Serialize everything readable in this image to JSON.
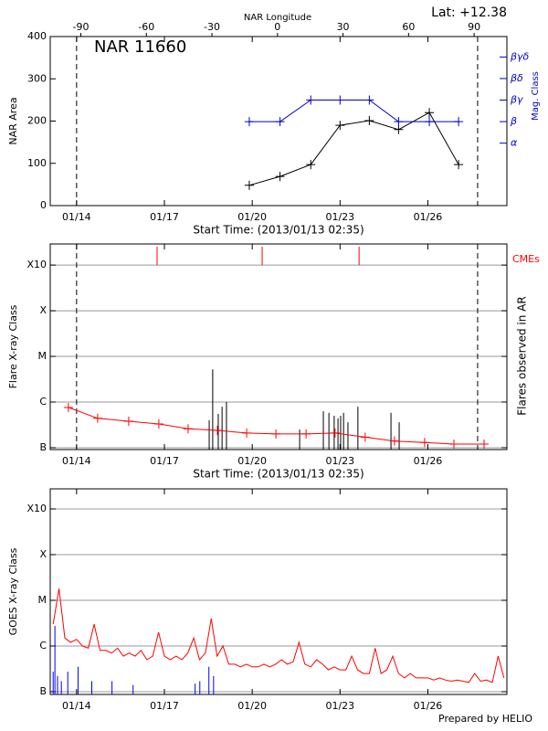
{
  "chart_data": [
    {
      "type": "line",
      "annotation": "NAR 11660",
      "corner_text": "Lat: +12.38",
      "xlabel": "Start Time: (2013/01/13 02:35)",
      "ylabel": "NAR Area",
      "y2label": "Mag. Class",
      "x2label": "NAR Longitude",
      "xlim": [
        13.1,
        28.7
      ],
      "xticks": [
        {
          "value": 14,
          "label": "01/14"
        },
        {
          "value": 17,
          "label": "01/17"
        },
        {
          "value": 20,
          "label": "01/20"
        },
        {
          "value": 23,
          "label": "01/23"
        },
        {
          "value": 26,
          "label": "01/26"
        }
      ],
      "x2lim": [
        -104,
        105
      ],
      "x2ticks": [
        -90,
        -60,
        -30,
        0,
        30,
        60,
        90
      ],
      "ylim": [
        0,
        400
      ],
      "yticks": [
        0,
        100,
        200,
        300,
        400
      ],
      "y2lim": [
        -0.9,
        6.95
      ],
      "y2color": "#0000cc",
      "y2ticks": [
        {
          "value": 2,
          "label": "α"
        },
        {
          "value": 3,
          "label": "β"
        },
        {
          "value": 4,
          "label": "βγ"
        },
        {
          "value": 5,
          "label": "βδ"
        },
        {
          "value": 6,
          "label": "βγδ"
        }
      ],
      "grid": false,
      "vlines": [
        14.0,
        27.7
      ],
      "series": [
        {
          "type": "line",
          "marker": "+",
          "color": "#000000",
          "x": [
            19.9,
            20.95,
            22.0,
            23.0,
            24.0,
            25.0,
            26.05,
            27.05
          ],
          "values": [
            48,
            69,
            97,
            190,
            201,
            180,
            220,
            97
          ]
        },
        {
          "type": "line",
          "marker": "+",
          "axis": "y2",
          "color": "#0000cc",
          "x": [
            19.9,
            20.95,
            22.0,
            23.0,
            24.0,
            25.0,
            26.05,
            27.05
          ],
          "values": [
            3,
            3,
            4,
            4,
            4,
            3,
            3,
            3
          ]
        }
      ]
    },
    {
      "type": "bar",
      "xlabel": "Start Time: (2013/01/13 02:35)",
      "ylabel": "Flare X-ray Class",
      "y2label": "Flares observed in AR",
      "xlim": [
        13.1,
        28.7
      ],
      "xticks": [
        {
          "value": 14,
          "label": "01/14"
        },
        {
          "value": 17,
          "label": "01/17"
        },
        {
          "value": 20,
          "label": "01/20"
        },
        {
          "value": 23,
          "label": "01/23"
        },
        {
          "value": 26,
          "label": "01/26"
        }
      ],
      "ylog": true,
      "ylim": [
        9.1e-08,
        0.0029
      ],
      "yticks": [
        {
          "value": 1e-07,
          "label": "B"
        },
        {
          "value": 1e-06,
          "label": "C"
        },
        {
          "value": 1e-05,
          "label": "M"
        },
        {
          "value": 0.0001,
          "label": "X"
        },
        {
          "value": 0.001,
          "label": "X10"
        }
      ],
      "grid": true,
      "vlines": [
        14.0,
        27.7
      ],
      "series": [
        {
          "type": "event",
          "name": "CMEs",
          "color": "#ff0000",
          "x": [
            16.75,
            20.34,
            23.65
          ]
        },
        {
          "type": "stem",
          "color": "#000000",
          "x": [
            18.53,
            18.65,
            18.84,
            18.97,
            19.12,
            21.62,
            22.43,
            22.62,
            22.8,
            22.93,
            23.02,
            23.12,
            23.27,
            23.61,
            24.74,
            25.02
          ],
          "values": [
            4e-07,
            5.2e-06,
            5.5e-07,
            7.9e-07,
            1e-06,
            2.5e-07,
            6.3e-07,
            5.8e-07,
            5e-07,
            4.4e-07,
            5e-07,
            5.8e-07,
            3.6e-07,
            7.9e-07,
            5.8e-07,
            3.6e-07
          ]
        },
        {
          "type": "line",
          "marker": "+",
          "color": "#ff0000",
          "x": [
            13.72,
            14.72,
            15.78,
            16.81,
            17.81,
            18.81,
            19.81,
            20.81,
            21.84,
            22.83,
            23.86,
            24.86,
            25.89,
            26.89,
            27.92
          ],
          "values": [
            7.6e-07,
            4.4e-07,
            3.8e-07,
            3.3e-07,
            2.6e-07,
            2.4e-07,
            2.1e-07,
            2e-07,
            2e-07,
            2.1e-07,
            1.7e-07,
            1.4e-07,
            1.3e-07,
            1.2e-07,
            1.2e-07
          ]
        }
      ]
    },
    {
      "type": "line",
      "ylabel": "GOES X-ray Class",
      "xlim": [
        13.1,
        28.7
      ],
      "xticks": [
        {
          "value": 14,
          "label": "01/14"
        },
        {
          "value": 17,
          "label": "01/17"
        },
        {
          "value": 20,
          "label": "01/20"
        },
        {
          "value": 23,
          "label": "01/23"
        },
        {
          "value": 26,
          "label": "01/26"
        }
      ],
      "ylog": true,
      "ylim": [
        8.7e-08,
        0.00275
      ],
      "yticks": [
        {
          "value": 1e-07,
          "label": "B"
        },
        {
          "value": 1e-06,
          "label": "C"
        },
        {
          "value": 1e-05,
          "label": "M"
        },
        {
          "value": 0.0001,
          "label": "X"
        },
        {
          "value": 0.001,
          "label": "X10"
        }
      ],
      "grid": true,
      "series": [
        {
          "type": "line",
          "color": "#ff0000",
          "x": [
            13.2,
            13.4,
            13.6,
            13.8,
            14.0,
            14.2,
            14.4,
            14.6,
            14.8,
            15.0,
            15.2,
            15.4,
            15.6,
            15.8,
            16.0,
            16.2,
            16.4,
            16.6,
            16.8,
            17.0,
            17.2,
            17.4,
            17.6,
            17.8,
            18.0,
            18.2,
            18.4,
            18.6,
            18.8,
            19.0,
            19.2,
            19.4,
            19.6,
            19.8,
            20.0,
            20.2,
            20.4,
            20.6,
            20.8,
            21.0,
            21.2,
            21.4,
            21.6,
            21.8,
            22.0,
            22.2,
            22.4,
            22.6,
            22.8,
            23.0,
            23.2,
            23.4,
            23.6,
            23.8,
            24.0,
            24.2,
            24.4,
            24.6,
            24.8,
            25.0,
            25.2,
            25.4,
            25.6,
            25.8,
            26.0,
            26.2,
            26.4,
            26.6,
            26.8,
            27.0,
            27.2,
            27.4,
            27.6,
            27.8,
            28.0,
            28.2,
            28.4,
            28.6
          ],
          "values": [
            3e-06,
            1.8e-05,
            1.5e-06,
            1.2e-06,
            1.4e-06,
            1e-06,
            9e-07,
            3e-06,
            8e-07,
            8e-07,
            7e-07,
            9e-07,
            6e-07,
            7e-07,
            6e-07,
            8e-07,
            5e-07,
            6e-07,
            2e-06,
            6e-07,
            5e-07,
            6e-07,
            5e-07,
            7e-07,
            1.5e-06,
            5e-07,
            7e-07,
            4e-06,
            6e-07,
            1e-06,
            4e-07,
            4e-07,
            3.5e-07,
            4e-07,
            3.5e-07,
            3.5e-07,
            4e-07,
            3.5e-07,
            4e-07,
            5e-07,
            4e-07,
            4.5e-07,
            1.2e-06,
            4e-07,
            3.5e-07,
            5e-07,
            4e-07,
            3e-07,
            3.5e-07,
            3e-07,
            3e-07,
            6e-07,
            3e-07,
            2.5e-07,
            2.5e-07,
            9e-07,
            2.5e-07,
            3e-07,
            6e-07,
            2.5e-07,
            2e-07,
            2.5e-07,
            2e-07,
            2e-07,
            2e-07,
            1.8e-07,
            2e-07,
            1.8e-07,
            1.7e-07,
            1.8e-07,
            1.7e-07,
            1.6e-07,
            2.5e-07,
            1.7e-07,
            1.8e-07,
            1.6e-07,
            6e-07,
            2e-07
          ]
        },
        {
          "type": "stem",
          "color": "#0000ff",
          "x": [
            13.2,
            13.26,
            13.35,
            13.48,
            13.7,
            14.05,
            14.52,
            15.21,
            15.93,
            18.05,
            18.21,
            18.52,
            18.68
          ],
          "values": [
            2.75e-07,
            2.75e-06,
            2.2e-07,
            1.7e-07,
            2.75e-07,
            3.5e-07,
            1.7e-07,
            1.7e-07,
            1.4e-07,
            1.5e-07,
            1.7e-07,
            3.5e-07,
            2.2e-07
          ]
        }
      ]
    }
  ],
  "footer": "Prepared by HELIO"
}
